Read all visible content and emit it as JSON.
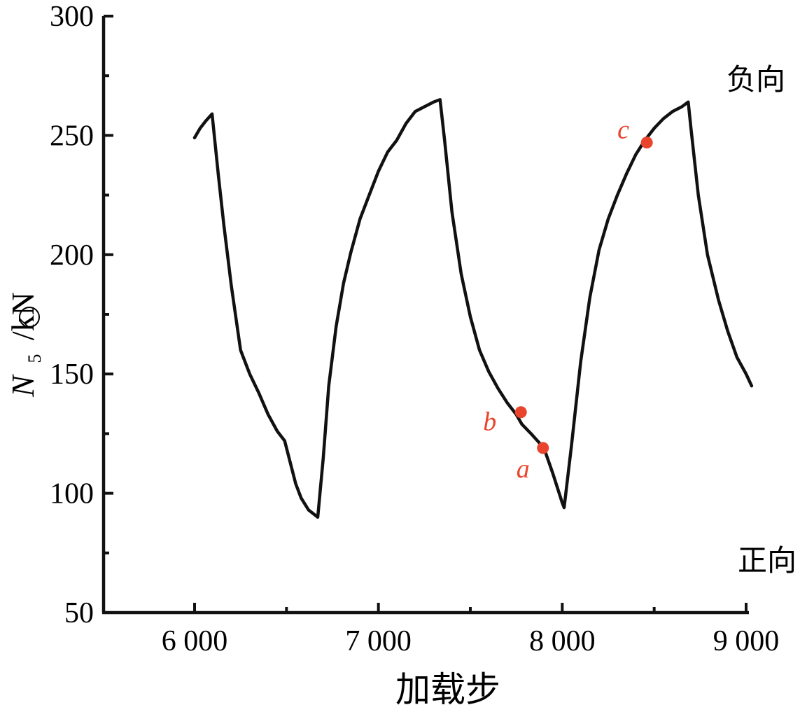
{
  "chart_data": {
    "type": "line",
    "xlabel": "加载步",
    "ylabel": {
      "symbol": "N",
      "subscript": "5",
      "unit": "/kN"
    },
    "xlim": [
      5500,
      9000
    ],
    "ylim": [
      50,
      300
    ],
    "x_ticks": [
      6000,
      7000,
      8000,
      9000
    ],
    "x_tick_labels": [
      "6 000",
      "7 000",
      "8 000",
      "9 000"
    ],
    "y_ticks": [
      50,
      100,
      150,
      200,
      250,
      300
    ],
    "y_tick_labels": [
      "50",
      "100",
      "150",
      "200",
      "250",
      "300"
    ],
    "grid": false,
    "line_color": "#111111",
    "point_color": "#e8452c",
    "series": [
      {
        "x": [
          6000,
          6030,
          6060,
          6095,
          6130,
          6160,
          6200,
          6250,
          6300,
          6350,
          6400,
          6450,
          6490,
          6520,
          6550,
          6580,
          6620,
          6670,
          6700,
          6730,
          6770,
          6810,
          6850,
          6900,
          6950,
          7000,
          7050,
          7100,
          7150,
          7200,
          7250,
          7300,
          7335,
          7360,
          7400,
          7450,
          7500,
          7550,
          7600,
          7650,
          7700,
          7750,
          7780,
          7830,
          7900,
          7950,
          8000,
          8010,
          8050,
          8100,
          8150,
          8200,
          8250,
          8300,
          8350,
          8400,
          8450,
          8500,
          8550,
          8600,
          8650,
          8685,
          8700,
          8740,
          8790,
          8850,
          8900,
          8950,
          9000,
          9030
        ],
        "y": [
          249,
          253,
          256,
          259,
          233,
          212,
          187,
          160,
          150,
          142,
          133,
          126,
          122,
          113,
          104,
          98,
          93,
          90,
          115,
          145,
          170,
          188,
          201,
          215,
          225,
          235,
          243,
          248,
          255,
          260,
          262,
          264,
          265,
          248,
          218,
          192,
          174,
          160,
          151,
          144,
          138,
          133,
          129,
          125,
          119,
          108,
          96,
          94,
          120,
          155,
          182,
          202,
          215,
          225,
          234,
          242,
          248,
          253,
          257,
          260,
          262,
          264,
          253,
          225,
          200,
          181,
          168,
          157,
          150,
          145
        ]
      }
    ],
    "points": [
      {
        "label": "a",
        "x": 7895,
        "y": 119
      },
      {
        "label": "b",
        "x": 7775,
        "y": 134
      },
      {
        "label": "c",
        "x": 8460,
        "y": 247
      }
    ],
    "annotations": {
      "top_right": "负向",
      "bottom_right": "正向"
    }
  }
}
